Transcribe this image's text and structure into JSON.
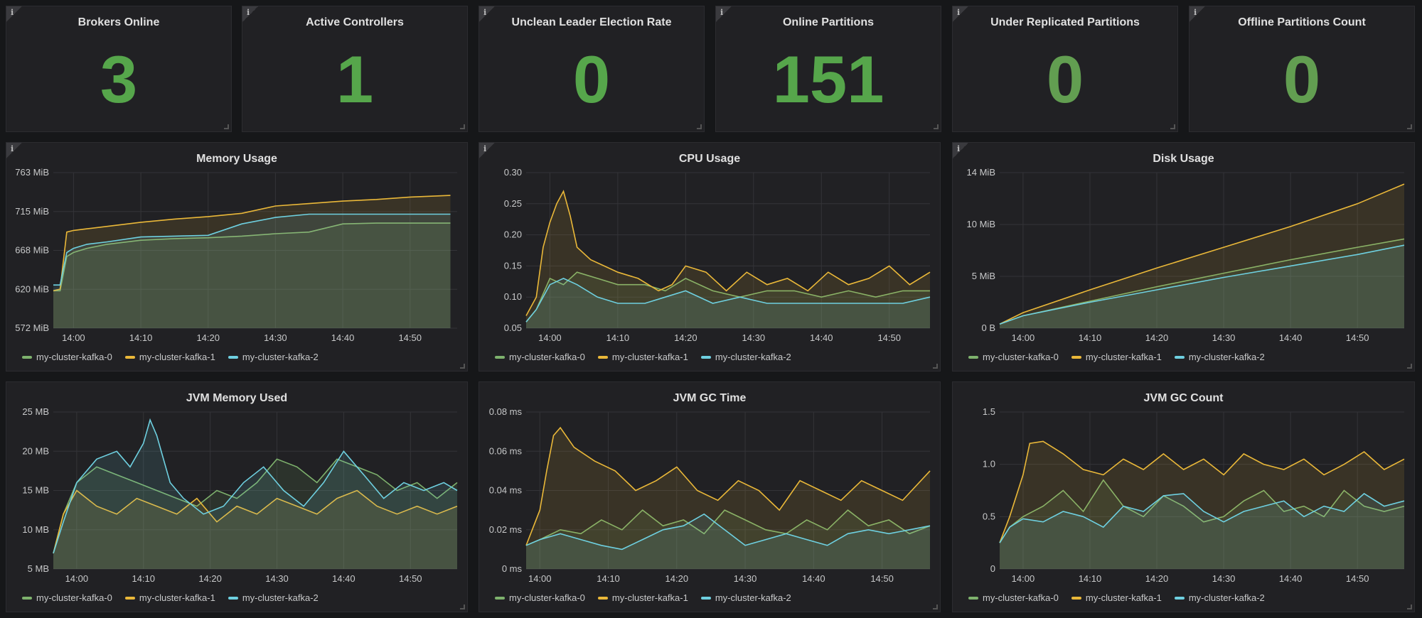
{
  "colors": {
    "background": "#161719",
    "panel": "#212124",
    "stat_green": "#56a64b",
    "series": [
      "#7eb26d",
      "#eab839",
      "#6ed0e0"
    ]
  },
  "series_names": [
    "my-cluster-kafka-0",
    "my-cluster-kafka-1",
    "my-cluster-kafka-2"
  ],
  "stats": [
    {
      "title": "Brokers Online",
      "value": "3"
    },
    {
      "title": "Active Controllers",
      "value": "1"
    },
    {
      "title": "Unclean Leader Election Rate",
      "value": "0"
    },
    {
      "title": "Online Partitions",
      "value": "151"
    },
    {
      "title": "Under Replicated Partitions",
      "value": "0"
    },
    {
      "title": "Offline Partitions Count",
      "value": "0"
    }
  ],
  "chart_data": [
    {
      "type": "area",
      "title": "Memory Usage",
      "x_ticks": [
        "14:00",
        "14:10",
        "14:20",
        "14:30",
        "14:40",
        "14:50"
      ],
      "y_ticks": [
        "572 MiB",
        "620 MiB",
        "668 MiB",
        "715 MiB",
        "763 MiB"
      ],
      "ylim": [
        572,
        763
      ],
      "xlim": [
        -3,
        57
      ],
      "series": [
        {
          "name": "my-cluster-kafka-0",
          "x": [
            -3,
            -2,
            -1,
            0,
            2,
            5,
            10,
            15,
            20,
            25,
            30,
            35,
            40,
            45,
            50,
            56
          ],
          "values": [
            618,
            618,
            660,
            665,
            670,
            675,
            680,
            682,
            683,
            685,
            688,
            690,
            700,
            701,
            701,
            701
          ]
        },
        {
          "name": "my-cluster-kafka-1",
          "x": [
            -3,
            -2,
            -1,
            0,
            2,
            5,
            10,
            15,
            20,
            25,
            30,
            35,
            40,
            45,
            50,
            56
          ],
          "values": [
            618,
            620,
            690,
            692,
            694,
            697,
            702,
            706,
            709,
            713,
            722,
            725,
            728,
            730,
            733,
            735
          ]
        },
        {
          "name": "my-cluster-kafka-2",
          "x": [
            -3,
            -2,
            -1,
            0,
            2,
            5,
            10,
            15,
            20,
            25,
            30,
            35,
            40,
            45,
            50,
            56
          ],
          "values": [
            625,
            625,
            665,
            670,
            675,
            678,
            684,
            685,
            686,
            700,
            708,
            712,
            712,
            712,
            712,
            712
          ]
        }
      ]
    },
    {
      "type": "area",
      "title": "CPU Usage",
      "x_ticks": [
        "14:00",
        "14:10",
        "14:20",
        "14:30",
        "14:40",
        "14:50"
      ],
      "y_ticks": [
        "0.05",
        "0.10",
        "0.15",
        "0.20",
        "0.25",
        "0.30"
      ],
      "ylim": [
        0.05,
        0.3
      ],
      "xlim": [
        -3.5,
        56
      ],
      "series": [
        {
          "name": "my-cluster-kafka-0",
          "x": [
            -3.5,
            -2,
            0,
            2,
            4,
            7,
            10,
            14,
            17,
            20,
            24,
            28,
            32,
            36,
            40,
            44,
            48,
            52,
            56
          ],
          "values": [
            0.06,
            0.08,
            0.13,
            0.12,
            0.14,
            0.13,
            0.12,
            0.12,
            0.11,
            0.13,
            0.11,
            0.1,
            0.11,
            0.11,
            0.1,
            0.11,
            0.1,
            0.11,
            0.11
          ]
        },
        {
          "name": "my-cluster-kafka-1",
          "x": [
            -3.5,
            -2,
            -1,
            0,
            1,
            2,
            3,
            4,
            6,
            8,
            10,
            13,
            16,
            18,
            20,
            23,
            26,
            29,
            32,
            35,
            38,
            41,
            44,
            47,
            50,
            53,
            56
          ],
          "values": [
            0.07,
            0.1,
            0.18,
            0.22,
            0.25,
            0.27,
            0.23,
            0.18,
            0.16,
            0.15,
            0.14,
            0.13,
            0.11,
            0.12,
            0.15,
            0.14,
            0.11,
            0.14,
            0.12,
            0.13,
            0.11,
            0.14,
            0.12,
            0.13,
            0.15,
            0.12,
            0.14
          ]
        },
        {
          "name": "my-cluster-kafka-2",
          "x": [
            -3.5,
            -2,
            0,
            2,
            4,
            7,
            10,
            14,
            17,
            20,
            24,
            28,
            32,
            36,
            40,
            44,
            48,
            52,
            56
          ],
          "values": [
            0.06,
            0.08,
            0.12,
            0.13,
            0.12,
            0.1,
            0.09,
            0.09,
            0.1,
            0.11,
            0.09,
            0.1,
            0.09,
            0.09,
            0.09,
            0.09,
            0.09,
            0.09,
            0.1
          ]
        }
      ]
    },
    {
      "type": "area",
      "title": "Disk Usage",
      "x_ticks": [
        "14:00",
        "14:10",
        "14:20",
        "14:30",
        "14:40",
        "14:50"
      ],
      "y_ticks": [
        "0 B",
        "5 MiB",
        "10 MiB",
        "14 MiB"
      ],
      "ylim": [
        0,
        15
      ],
      "xlim": [
        -3.5,
        57
      ],
      "series": [
        {
          "name": "my-cluster-kafka-0",
          "x": [
            -3.5,
            0,
            10,
            20,
            30,
            40,
            50,
            57
          ],
          "values": [
            0.4,
            1.2,
            2.6,
            4.0,
            5.3,
            6.6,
            7.8,
            8.6
          ]
        },
        {
          "name": "my-cluster-kafka-1",
          "x": [
            -3.5,
            0,
            10,
            20,
            30,
            40,
            50,
            57
          ],
          "values": [
            0.4,
            1.5,
            3.7,
            5.8,
            7.8,
            9.8,
            12.0,
            13.9
          ]
        },
        {
          "name": "my-cluster-kafka-2",
          "x": [
            -3.5,
            0,
            10,
            20,
            30,
            40,
            50,
            57
          ],
          "values": [
            0.4,
            1.2,
            2.5,
            3.7,
            4.9,
            6.0,
            7.1,
            8.0
          ]
        }
      ]
    },
    {
      "type": "area",
      "title": "JVM Memory Used",
      "x_ticks": [
        "14:00",
        "14:10",
        "14:20",
        "14:30",
        "14:40",
        "14:50"
      ],
      "y_ticks": [
        "5 MB",
        "10 MB",
        "15 MB",
        "20 MB",
        "25 MB"
      ],
      "ylim": [
        5,
        25
      ],
      "xlim": [
        -3.5,
        57
      ],
      "series": [
        {
          "name": "my-cluster-kafka-0",
          "x": [
            -3.5,
            -2,
            0,
            3,
            6,
            9,
            12,
            15,
            18,
            21,
            24,
            27,
            30,
            33,
            36,
            39,
            42,
            45,
            48,
            51,
            54,
            57
          ],
          "values": [
            7,
            12,
            16,
            18,
            17,
            16,
            15,
            14,
            13,
            15,
            14,
            16,
            19,
            18,
            16,
            19,
            18,
            17,
            15,
            16,
            14,
            16
          ]
        },
        {
          "name": "my-cluster-kafka-1",
          "x": [
            -3.5,
            -2,
            0,
            3,
            6,
            9,
            12,
            15,
            18,
            21,
            24,
            27,
            30,
            33,
            36,
            39,
            42,
            45,
            48,
            51,
            54,
            57
          ],
          "values": [
            7,
            12,
            15,
            13,
            12,
            14,
            13,
            12,
            14,
            11,
            13,
            12,
            14,
            13,
            12,
            14,
            15,
            13,
            12,
            13,
            12,
            13
          ]
        },
        {
          "name": "my-cluster-kafka-2",
          "x": [
            -3.5,
            -2,
            0,
            3,
            6,
            8,
            10,
            11,
            12,
            14,
            16,
            19,
            22,
            25,
            28,
            31,
            34,
            37,
            40,
            43,
            46,
            49,
            52,
            55,
            57
          ],
          "values": [
            7,
            11,
            16,
            19,
            20,
            18,
            21,
            24,
            22,
            16,
            14,
            12,
            13,
            16,
            18,
            15,
            13,
            16,
            20,
            17,
            14,
            16,
            15,
            16,
            15
          ]
        }
      ]
    },
    {
      "type": "area",
      "title": "JVM GC Time",
      "x_ticks": [
        "14:00",
        "14:10",
        "14:20",
        "14:30",
        "14:40",
        "14:50"
      ],
      "y_ticks": [
        "0 ms",
        "0.02 ms",
        "0.04 ms",
        "0.06 ms",
        "0.08 ms"
      ],
      "ylim": [
        0,
        0.08
      ],
      "xlim": [
        -2,
        57
      ],
      "series": [
        {
          "name": "my-cluster-kafka-0",
          "x": [
            -2,
            0,
            3,
            6,
            9,
            12,
            15,
            18,
            21,
            24,
            27,
            30,
            33,
            36,
            39,
            42,
            45,
            48,
            51,
            54,
            57
          ],
          "values": [
            0.012,
            0.015,
            0.02,
            0.018,
            0.025,
            0.02,
            0.03,
            0.022,
            0.025,
            0.018,
            0.03,
            0.025,
            0.02,
            0.018,
            0.025,
            0.02,
            0.03,
            0.022,
            0.025,
            0.018,
            0.022
          ]
        },
        {
          "name": "my-cluster-kafka-1",
          "x": [
            -2,
            0,
            1,
            2,
            3,
            5,
            8,
            11,
            14,
            17,
            20,
            23,
            26,
            29,
            32,
            35,
            38,
            41,
            44,
            47,
            50,
            53,
            57
          ],
          "values": [
            0.012,
            0.03,
            0.05,
            0.068,
            0.072,
            0.062,
            0.055,
            0.05,
            0.04,
            0.045,
            0.052,
            0.04,
            0.035,
            0.045,
            0.04,
            0.03,
            0.045,
            0.04,
            0.035,
            0.045,
            0.04,
            0.035,
            0.05
          ]
        },
        {
          "name": "my-cluster-kafka-2",
          "x": [
            -2,
            0,
            3,
            6,
            9,
            12,
            15,
            18,
            21,
            24,
            27,
            30,
            33,
            36,
            39,
            42,
            45,
            48,
            51,
            54,
            57
          ],
          "values": [
            0.012,
            0.015,
            0.018,
            0.015,
            0.012,
            0.01,
            0.015,
            0.02,
            0.022,
            0.028,
            0.02,
            0.012,
            0.015,
            0.018,
            0.015,
            0.012,
            0.018,
            0.02,
            0.018,
            0.02,
            0.022
          ]
        }
      ]
    },
    {
      "type": "area",
      "title": "JVM GC Count",
      "x_ticks": [
        "14:00",
        "14:10",
        "14:20",
        "14:30",
        "14:40",
        "14:50"
      ],
      "y_ticks": [
        "0",
        "0.5",
        "1.0",
        "1.5"
      ],
      "ylim": [
        0,
        1.5
      ],
      "xlim": [
        -3.5,
        57
      ],
      "series": [
        {
          "name": "my-cluster-kafka-0",
          "x": [
            -3.5,
            -2,
            0,
            3,
            6,
            9,
            12,
            15,
            18,
            21,
            24,
            27,
            30,
            33,
            36,
            39,
            42,
            45,
            48,
            51,
            54,
            57
          ],
          "values": [
            0.25,
            0.4,
            0.5,
            0.6,
            0.75,
            0.55,
            0.85,
            0.6,
            0.5,
            0.7,
            0.6,
            0.45,
            0.5,
            0.65,
            0.75,
            0.55,
            0.6,
            0.5,
            0.75,
            0.6,
            0.55,
            0.6
          ]
        },
        {
          "name": "my-cluster-kafka-1",
          "x": [
            -3.5,
            -2,
            0,
            1,
            3,
            6,
            9,
            12,
            15,
            18,
            21,
            24,
            27,
            30,
            33,
            36,
            39,
            42,
            45,
            48,
            51,
            54,
            57
          ],
          "values": [
            0.25,
            0.5,
            0.9,
            1.2,
            1.22,
            1.1,
            0.95,
            0.9,
            1.05,
            0.95,
            1.1,
            0.95,
            1.05,
            0.9,
            1.1,
            1.0,
            0.95,
            1.05,
            0.9,
            1.0,
            1.12,
            0.95,
            1.05
          ]
        },
        {
          "name": "my-cluster-kafka-2",
          "x": [
            -3.5,
            -2,
            0,
            3,
            6,
            9,
            12,
            15,
            18,
            21,
            24,
            27,
            30,
            33,
            36,
            39,
            42,
            45,
            48,
            51,
            54,
            57
          ],
          "values": [
            0.25,
            0.4,
            0.48,
            0.45,
            0.55,
            0.5,
            0.4,
            0.6,
            0.55,
            0.7,
            0.72,
            0.55,
            0.45,
            0.55,
            0.6,
            0.65,
            0.5,
            0.6,
            0.55,
            0.72,
            0.6,
            0.65
          ]
        }
      ]
    }
  ]
}
